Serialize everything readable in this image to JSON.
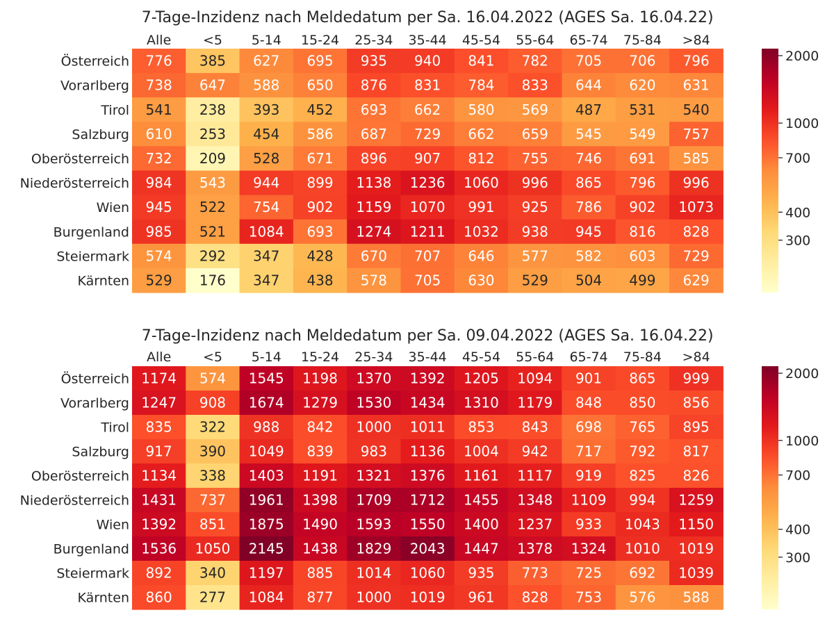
{
  "chart_data": [
    {
      "type": "heatmap",
      "title": "7-Tage-Inzidenz nach Meldedatum per Sa. 16.04.2022  (AGES Sa. 16.04.22)",
      "columns": [
        "Alle",
        "<5",
        "5-14",
        "15-24",
        "25-34",
        "35-44",
        "45-54",
        "55-64",
        "65-74",
        "75-84",
        ">84"
      ],
      "rows": [
        "Österreich",
        "Vorarlberg",
        "Tirol",
        "Salzburg",
        "Oberösterreich",
        "Niederösterreich",
        "Wien",
        "Burgenland",
        "Steiermark",
        "Kärnten"
      ],
      "values": [
        [
          776,
          385,
          627,
          695,
          935,
          940,
          841,
          782,
          705,
          706,
          796
        ],
        [
          738,
          647,
          588,
          650,
          876,
          831,
          784,
          833,
          644,
          620,
          631
        ],
        [
          541,
          238,
          393,
          452,
          693,
          662,
          580,
          569,
          487,
          531,
          540
        ],
        [
          610,
          253,
          454,
          586,
          687,
          729,
          662,
          659,
          545,
          549,
          757
        ],
        [
          732,
          209,
          528,
          671,
          896,
          907,
          812,
          755,
          746,
          691,
          585
        ],
        [
          984,
          543,
          944,
          899,
          1138,
          1236,
          1060,
          996,
          865,
          796,
          996
        ],
        [
          945,
          522,
          754,
          902,
          1159,
          1070,
          991,
          925,
          786,
          902,
          1073
        ],
        [
          985,
          521,
          1084,
          693,
          1274,
          1211,
          1032,
          938,
          945,
          816,
          828
        ],
        [
          574,
          292,
          347,
          428,
          670,
          707,
          646,
          577,
          582,
          603,
          729
        ],
        [
          529,
          176,
          347,
          438,
          578,
          705,
          630,
          529,
          504,
          499,
          629
        ]
      ],
      "color_scale": {
        "type": "log",
        "range": [
          175,
          2150
        ],
        "colormap": "YlOrRd"
      },
      "colorbar_ticks": [
        300,
        400,
        700,
        1000,
        2000
      ]
    },
    {
      "type": "heatmap",
      "title": "7-Tage-Inzidenz nach Meldedatum per Sa. 09.04.2022  (AGES Sa. 16.04.22)",
      "columns": [
        "Alle",
        "<5",
        "5-14",
        "15-24",
        "25-34",
        "35-44",
        "45-54",
        "55-64",
        "65-74",
        "75-84",
        ">84"
      ],
      "rows": [
        "Österreich",
        "Vorarlberg",
        "Tirol",
        "Salzburg",
        "Oberösterreich",
        "Niederösterreich",
        "Wien",
        "Burgenland",
        "Steiermark",
        "Kärnten"
      ],
      "values": [
        [
          1174,
          574,
          1545,
          1198,
          1370,
          1392,
          1205,
          1094,
          901,
          865,
          999
        ],
        [
          1247,
          908,
          1674,
          1279,
          1530,
          1434,
          1310,
          1179,
          848,
          850,
          856
        ],
        [
          835,
          322,
          988,
          842,
          1000,
          1011,
          853,
          843,
          698,
          765,
          895
        ],
        [
          917,
          390,
          1049,
          839,
          983,
          1136,
          1004,
          942,
          717,
          792,
          817
        ],
        [
          1134,
          338,
          1403,
          1191,
          1321,
          1376,
          1161,
          1117,
          919,
          825,
          826
        ],
        [
          1431,
          737,
          1961,
          1398,
          1709,
          1712,
          1455,
          1348,
          1109,
          994,
          1259
        ],
        [
          1392,
          851,
          1875,
          1490,
          1593,
          1550,
          1400,
          1237,
          933,
          1043,
          1150
        ],
        [
          1536,
          1050,
          2145,
          1438,
          1829,
          2043,
          1447,
          1378,
          1324,
          1010,
          1019
        ],
        [
          892,
          340,
          1197,
          885,
          1014,
          1060,
          935,
          773,
          725,
          692,
          1039
        ],
        [
          860,
          277,
          1084,
          877,
          1000,
          1019,
          961,
          828,
          753,
          576,
          588
        ]
      ],
      "color_scale": {
        "type": "log",
        "range": [
          175,
          2150
        ],
        "colormap": "YlOrRd"
      },
      "colorbar_ticks": [
        300,
        400,
        700,
        1000,
        2000
      ]
    }
  ]
}
